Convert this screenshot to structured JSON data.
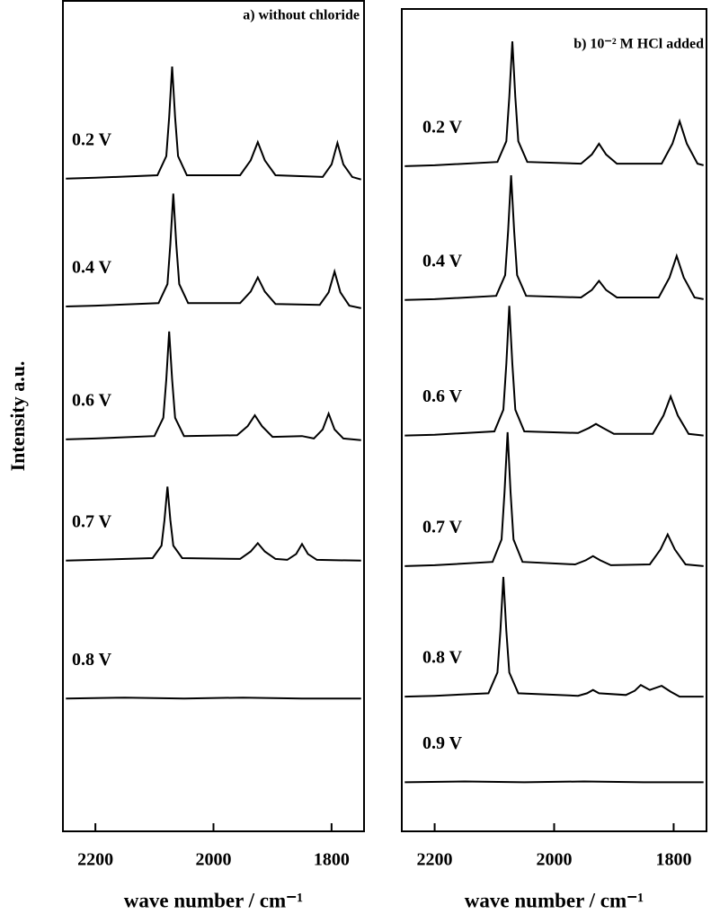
{
  "ylabel": "Intensity a.u.",
  "chart_data": [
    {
      "type": "line",
      "title": "a) without chloride",
      "xlabel": "wave number / cm⁻¹",
      "xlim": [
        2255,
        1745
      ],
      "xticks": [
        2200,
        2000,
        1800
      ],
      "ylim": [
        0,
        100
      ],
      "series": [
        {
          "name": "0.2 V",
          "color": "#000000",
          "x": [
            2250,
            2200,
            2095,
            2080,
            2075,
            2070,
            2065,
            2060,
            2045,
            1955,
            1937,
            1925,
            1913,
            1895,
            1815,
            1800,
            1790,
            1780,
            1765,
            1750
          ],
          "values": [
            78.6,
            78.7,
            79.0,
            81.3,
            86.0,
            92.1,
            86.0,
            81.3,
            79.0,
            79.0,
            80.8,
            83.0,
            80.8,
            79.0,
            78.8,
            80.3,
            82.9,
            80.3,
            78.8,
            78.5
          ]
        },
        {
          "name": "0.4 V",
          "color": "#000000",
          "x": [
            2250,
            2200,
            2093,
            2078,
            2073,
            2068,
            2063,
            2058,
            2043,
            1955,
            1937,
            1925,
            1913,
            1895,
            1820,
            1805,
            1795,
            1785,
            1770,
            1750
          ],
          "values": [
            63.2,
            63.3,
            63.6,
            65.9,
            70.7,
            76.8,
            70.7,
            65.9,
            63.6,
            63.6,
            65.0,
            66.7,
            65.0,
            63.5,
            63.4,
            64.9,
            67.4,
            64.9,
            63.3,
            63.0
          ]
        },
        {
          "name": "0.6 V",
          "color": "#000000",
          "x": [
            2250,
            2200,
            2100,
            2085,
            2080,
            2075,
            2070,
            2065,
            2050,
            1960,
            1942,
            1930,
            1918,
            1900,
            1850,
            1830,
            1815,
            1805,
            1795,
            1780,
            1750
          ],
          "values": [
            47.2,
            47.3,
            47.6,
            49.8,
            54.4,
            60.2,
            54.4,
            49.8,
            47.6,
            47.7,
            48.8,
            50.1,
            48.8,
            47.5,
            47.6,
            47.3,
            48.4,
            50.3,
            48.4,
            47.3,
            47.1
          ]
        },
        {
          "name": "0.7 V",
          "color": "#000000",
          "x": [
            2250,
            2200,
            2103,
            2088,
            2083,
            2078,
            2073,
            2068,
            2053,
            1955,
            1937,
            1925,
            1913,
            1895,
            1875,
            1860,
            1850,
            1840,
            1825,
            1750
          ],
          "values": [
            32.6,
            32.7,
            32.9,
            34.4,
            37.5,
            41.5,
            37.5,
            34.4,
            32.9,
            32.8,
            33.7,
            34.7,
            33.7,
            32.8,
            32.7,
            33.4,
            34.6,
            33.4,
            32.7,
            32.6
          ]
        },
        {
          "name": "0.8 V",
          "color": "#000000",
          "x": [
            2250,
            2150,
            2050,
            1950,
            1850,
            1750
          ],
          "values": [
            16.0,
            16.1,
            16.0,
            16.1,
            16.0,
            16.0
          ]
        }
      ]
    },
    {
      "type": "line",
      "title": "b) 10⁻² M HCl added",
      "xlabel": "wave number / cm⁻¹",
      "xlim": [
        2255,
        1745
      ],
      "xticks": [
        2200,
        2000,
        1800
      ],
      "ylim": [
        0,
        98.9
      ],
      "series": [
        {
          "name": "0.2 V",
          "color": "#000000",
          "x": [
            2250,
            2200,
            2095,
            2080,
            2075,
            2070,
            2065,
            2060,
            2045,
            1955,
            1937,
            1925,
            1913,
            1895,
            1820,
            1802,
            1790,
            1778,
            1760,
            1750
          ],
          "values": [
            80.0,
            80.1,
            80.5,
            83.0,
            88.3,
            95.0,
            88.3,
            83.0,
            80.5,
            80.3,
            81.4,
            82.7,
            81.4,
            80.3,
            80.3,
            82.7,
            85.4,
            82.7,
            80.3,
            80.1
          ]
        },
        {
          "name": "0.4 V",
          "color": "#000000",
          "x": [
            2250,
            2200,
            2097,
            2082,
            2077,
            2072,
            2067,
            2062,
            2047,
            1955,
            1937,
            1925,
            1913,
            1895,
            1825,
            1807,
            1795,
            1783,
            1765,
            1750
          ],
          "values": [
            63.9,
            64.0,
            64.4,
            66.9,
            72.2,
            78.9,
            72.2,
            66.9,
            64.4,
            64.2,
            65.1,
            66.2,
            65.1,
            64.2,
            64.2,
            66.6,
            69.2,
            66.6,
            64.2,
            64.0
          ]
        },
        {
          "name": "0.6 V",
          "color": "#000000",
          "x": [
            2250,
            2200,
            2100,
            2085,
            2080,
            2075,
            2070,
            2065,
            2050,
            1960,
            1942,
            1930,
            1918,
            1900,
            1835,
            1817,
            1805,
            1793,
            1775,
            1750
          ],
          "values": [
            47.6,
            47.7,
            48.1,
            50.7,
            56.2,
            63.2,
            56.2,
            50.7,
            48.1,
            47.9,
            48.5,
            49.0,
            48.5,
            47.8,
            47.8,
            50.0,
            52.3,
            50.0,
            47.8,
            47.6
          ]
        },
        {
          "name": "0.7 V",
          "color": "#000000",
          "x": [
            2250,
            2200,
            2103,
            2088,
            2083,
            2078,
            2073,
            2068,
            2053,
            1965,
            1947,
            1935,
            1923,
            1905,
            1840,
            1822,
            1810,
            1798,
            1780,
            1750
          ],
          "values": [
            31.9,
            32.0,
            32.4,
            35.1,
            40.8,
            48.0,
            40.8,
            35.1,
            32.4,
            32.1,
            32.6,
            33.1,
            32.6,
            32.0,
            32.1,
            33.9,
            35.7,
            33.9,
            32.1,
            31.9
          ]
        },
        {
          "name": "0.8 V",
          "color": "#000000",
          "x": [
            2250,
            2200,
            2110,
            2095,
            2090,
            2085,
            2080,
            2075,
            2060,
            1960,
            1945,
            1935,
            1925,
            1880,
            1865,
            1855,
            1840,
            1820,
            1805,
            1790,
            1750
          ],
          "values": [
            16.2,
            16.3,
            16.6,
            19.1,
            24.1,
            30.6,
            24.1,
            19.1,
            16.6,
            16.3,
            16.6,
            17.0,
            16.6,
            16.4,
            16.9,
            17.6,
            17.0,
            17.5,
            16.8,
            16.2,
            16.2
          ]
        },
        {
          "name": "0.9 V",
          "color": "#000000",
          "x": [
            2250,
            2150,
            2050,
            1950,
            1850,
            1750
          ],
          "values": [
            5.9,
            6.0,
            5.9,
            6.0,
            5.9,
            5.9
          ]
        }
      ]
    }
  ]
}
